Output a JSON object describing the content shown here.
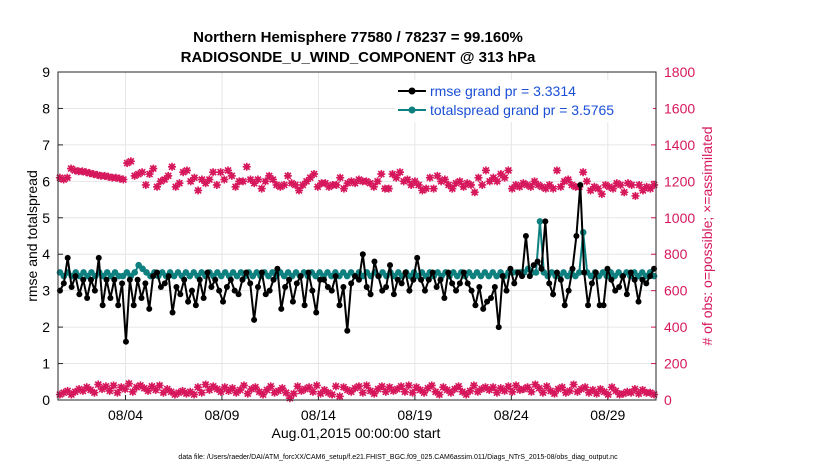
{
  "chart_data": {
    "type": "line",
    "title_line1": "Northern Hemisphere 77580 / 78237 = 99.160%",
    "title_line2": "RADIOSONDE_U_WIND_COMPONENT @ 313 hPa",
    "xlabel": "Aug.01,2015 00:00:00 start",
    "ylabel_left": "rmse and totalspread",
    "ylabel_right": "# of obs: o=possible; ×=assimilated",
    "footnote": "data file: /Users/raeder/DAI/ATM_forcXX/CAM6_setup/f.e21.FHIST_BGC.f09_025.CAM6assim.011/Diags_NTrS_2015-08/obs_diag_output.nc",
    "x_ticks": [
      {
        "day": 3.5,
        "label": "08/04"
      },
      {
        "day": 8.5,
        "label": "08/09"
      },
      {
        "day": 13.5,
        "label": "08/14"
      },
      {
        "day": 18.5,
        "label": "08/19"
      },
      {
        "day": 23.5,
        "label": "08/24"
      },
      {
        "day": 28.5,
        "label": "08/29"
      }
    ],
    "xlim": [
      0,
      31
    ],
    "ylim_left": [
      0,
      9
    ],
    "ylim_right": [
      0,
      1800
    ],
    "yticks_left": [
      "0",
      "1",
      "2",
      "3",
      "4",
      "5",
      "6",
      "7",
      "8",
      "9"
    ],
    "yticks_right": [
      "0",
      "200",
      "400",
      "600",
      "800",
      "1000",
      "1200",
      "1400",
      "1600",
      "1800"
    ],
    "colors": {
      "rmse": "#000000",
      "spread": "#0f8080",
      "obs": "#d6185c",
      "legend_text": "#1a4fd6"
    },
    "series": [
      {
        "name": "rmse",
        "legend": "rmse grand pr = 3.3314",
        "values": [
          3.0,
          3.2,
          3.9,
          3.1,
          3.4,
          2.9,
          3.3,
          2.8,
          3.3,
          3.0,
          3.9,
          2.6,
          3.3,
          2.8,
          3.3,
          2.6,
          3.2,
          1.6,
          3.3,
          2.6,
          3.3,
          2.8,
          3.2,
          2.5,
          3.4,
          3.5,
          3.1,
          3.2,
          3.4,
          2.4,
          3.1,
          2.9,
          3.3,
          2.7,
          3.0,
          2.6,
          3.3,
          2.8,
          3.5,
          3.1,
          3.3,
          3.0,
          2.7,
          3.1,
          3.3,
          3.0,
          2.9,
          3.3,
          3.5,
          3.2,
          2.2,
          3.1,
          3.5,
          2.9,
          3.0,
          3.3,
          3.6,
          2.5,
          3.1,
          3.3,
          2.7,
          3.2,
          3.4,
          2.6,
          3.5,
          3.0,
          2.4,
          3.3,
          3.3,
          3.1,
          3.0,
          3.4,
          2.6,
          3.1,
          1.9,
          3.2,
          3.4,
          3.3,
          4.0,
          3.1,
          2.9,
          3.8,
          3.4,
          3.0,
          3.1,
          3.7,
          2.9,
          3.3,
          3.2,
          3.5,
          3.0,
          3.3,
          3.9,
          3.3,
          3.0,
          3.3,
          3.5,
          3.1,
          3.3,
          2.8,
          3.5,
          3.2,
          3.0,
          3.2,
          3.5,
          3.2,
          3.0,
          2.6,
          3.1,
          2.5,
          2.7,
          2.8,
          3.1,
          2.0,
          3.4,
          3.0,
          3.6,
          3.2,
          3.5,
          3.4,
          4.5,
          3.4,
          3.7,
          3.8,
          3.6,
          4.9,
          3.2,
          2.9,
          3.5,
          3.3,
          2.6,
          3.0,
          3.6,
          4.5,
          5.9,
          3.5,
          2.6,
          3.2,
          3.5,
          2.6,
          2.6,
          3.6,
          3.3,
          3.0,
          3.1,
          3.4,
          2.9,
          3.5,
          3.3,
          2.7,
          3.3,
          3.2,
          3.4,
          3.6
        ]
      },
      {
        "name": "totalspread",
        "legend": "totalspread grand pr = 3.5765",
        "values": [
          3.5,
          3.4,
          3.5,
          3.4,
          3.5,
          3.4,
          3.5,
          3.4,
          3.5,
          3.4,
          3.5,
          3.4,
          3.5,
          3.4,
          3.5,
          3.4,
          3.4,
          3.5,
          3.4,
          3.5,
          3.7,
          3.6,
          3.5,
          3.4,
          3.5,
          3.4,
          3.5,
          3.4,
          3.5,
          3.4,
          3.5,
          3.4,
          3.5,
          3.4,
          3.5,
          3.4,
          3.5,
          3.4,
          3.5,
          3.4,
          3.5,
          3.4,
          3.5,
          3.4,
          3.5,
          3.4,
          3.5,
          3.4,
          3.5,
          3.4,
          3.5,
          3.4,
          3.5,
          3.4,
          3.5,
          3.4,
          3.5,
          3.4,
          3.5,
          3.4,
          3.5,
          3.4,
          3.5,
          3.4,
          3.5,
          3.4,
          3.5,
          3.4,
          3.5,
          3.4,
          3.5,
          3.4,
          3.5,
          3.4,
          3.5,
          3.4,
          3.5,
          3.4,
          3.5,
          3.4,
          3.5,
          3.4,
          3.5,
          3.4,
          3.5,
          3.4,
          3.5,
          3.4,
          3.5,
          3.4,
          3.5,
          3.4,
          3.5,
          3.4,
          3.5,
          3.4,
          3.5,
          3.4,
          3.5,
          3.4,
          3.5,
          3.4,
          3.5,
          3.4,
          3.5,
          3.4,
          3.5,
          3.4,
          3.5,
          3.4,
          3.5,
          3.4,
          3.5,
          3.4,
          3.5,
          3.5,
          3.5,
          3.5,
          3.5,
          3.6,
          3.5,
          3.5,
          4.9,
          3.5,
          3.4,
          3.5,
          3.4,
          3.4,
          3.5,
          3.4,
          3.5,
          3.4,
          3.5,
          4.6,
          3.5,
          3.4,
          3.5,
          3.4,
          3.5,
          3.4,
          3.5,
          3.4,
          3.5,
          3.4,
          3.5,
          3.4,
          3.5,
          3.4,
          3.5,
          3.4,
          3.5,
          3.4
        ]
      },
      {
        "name": "obs_possible_assimilated",
        "axis": "right",
        "values": [
          1220,
          1210,
          1220,
          1270,
          1260,
          1255,
          1255,
          1250,
          1245,
          1240,
          1235,
          1230,
          1230,
          1225,
          1220,
          1220,
          1215,
          1210,
          1300,
          1310,
          1230,
          1240,
          1250,
          1180,
          1240,
          1270,
          1170,
          1200,
          1210,
          1230,
          1280,
          1170,
          1190,
          1250,
          1260,
          1200,
          1220,
          1150,
          1210,
          1190,
          1210,
          1250,
          1180,
          1250,
          1210,
          1260,
          1230,
          1170,
          1200,
          1200,
          1280,
          1210,
          1190,
          1210,
          1160,
          1200,
          1230,
          1210,
          1180,
          1170,
          1180,
          1230,
          1190,
          1180,
          1150,
          1180,
          1200,
          1220,
          1240,
          1170,
          1190,
          1190,
          1170,
          1180,
          1180,
          1220,
          1160,
          1190,
          1200,
          1190,
          1210,
          1200,
          1200,
          1190,
          1170,
          1200,
          1240,
          1160,
          1160,
          1240,
          1220,
          1250,
          1200,
          1210,
          1180,
          1200,
          1180,
          1150,
          1160,
          1220,
          1160,
          1230,
          1200,
          1210,
          1180,
          1160,
          1190,
          1200,
          1170,
          1190,
          1180,
          1140,
          1220,
          1180,
          1260,
          1200,
          1220,
          1200,
          1240,
          1220,
          1260,
          1160,
          1180,
          1170,
          1190,
          1180,
          1170,
          1200,
          1180,
          1170,
          1160,
          1180,
          1160,
          1260,
          1170,
          1200,
          1210,
          1180,
          1170,
          1170,
          1250,
          1200,
          1150,
          1170,
          1160,
          1130,
          1180,
          1170,
          1160,
          1190,
          1180,
          1140,
          1190,
          1180,
          1120,
          1180,
          1150,
          1170,
          1160,
          1180
        ]
      },
      {
        "name": "obs_low",
        "axis": "right",
        "values": [
          30,
          40,
          50,
          30,
          45,
          60,
          50,
          70,
          55,
          40,
          85,
          60,
          75,
          50,
          80,
          40,
          70,
          60,
          90,
          45,
          70,
          80,
          65,
          50,
          75,
          55,
          80,
          40,
          60,
          45,
          30,
          40,
          50,
          35,
          45,
          30,
          70,
          40,
          85,
          55,
          75,
          60,
          45,
          70,
          50,
          65,
          40,
          55,
          80,
          35,
          60,
          70,
          45,
          30,
          55,
          75,
          40,
          50,
          65,
          40,
          10,
          35,
          75,
          50,
          60,
          70,
          45,
          80,
          35,
          55,
          40,
          30,
          75,
          20,
          70,
          55,
          45,
          65,
          75,
          40,
          80,
          50,
          35,
          60,
          75,
          45,
          70,
          50,
          60,
          75,
          45,
          80,
          40,
          70,
          55,
          40,
          65,
          80,
          45,
          30,
          70,
          55,
          40,
          60,
          75,
          45,
          30,
          50,
          80,
          45,
          60,
          70,
          55,
          70,
          40,
          65,
          50,
          75,
          45,
          80,
          55,
          60,
          70,
          45,
          85,
          65,
          40,
          75,
          50,
          35,
          60,
          70,
          40,
          50,
          85,
          45,
          60,
          70,
          40,
          55,
          35,
          60,
          45,
          30,
          70,
          50,
          30,
          35,
          45,
          40,
          60,
          35,
          55,
          40,
          40,
          30
        ]
      }
    ],
    "rmse_series": [],
    "spread_series": []
  }
}
